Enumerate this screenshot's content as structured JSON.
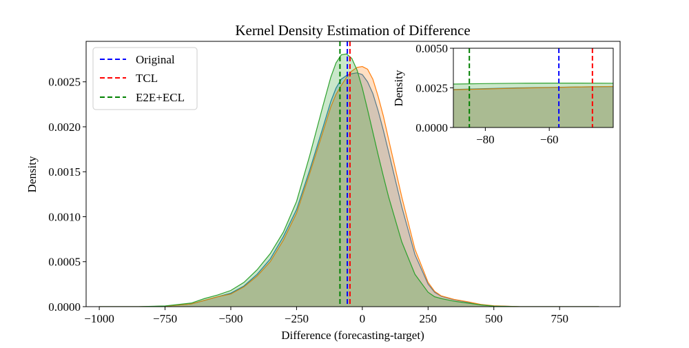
{
  "chart_data": [
    {
      "type": "area",
      "title": "Kernel Density Estimation of Difference",
      "xlabel": "Difference (forecasting-target)",
      "ylabel": "Density",
      "xlim": [
        -1050,
        980
      ],
      "ylim": [
        0,
        0.00295
      ],
      "xticks": [
        -1000,
        -750,
        -500,
        -250,
        0,
        250,
        500,
        750
      ],
      "xtick_labels": [
        "−1000",
        "−750",
        "−500",
        "−250",
        "0",
        "250",
        "500",
        "750"
      ],
      "yticks": [
        0,
        0.0005,
        0.001,
        0.0015,
        0.002,
        0.0025
      ],
      "ytick_labels": [
        "0.0000",
        "0.0005",
        "0.0010",
        "0.0015",
        "0.0020",
        "0.0025"
      ],
      "grid": false,
      "legend_position": "top-left",
      "series": [
        {
          "name": "Original",
          "color": "#1f77b4",
          "fill": "#1f77b4",
          "x": [
            -1000,
            -850,
            -750,
            -650,
            -600,
            -550,
            -500,
            -450,
            -400,
            -350,
            -300,
            -250,
            -200,
            -150,
            -120,
            -100,
            -80,
            -60,
            -40,
            -20,
            0,
            20,
            40,
            60,
            80,
            100,
            150,
            200,
            250,
            275,
            300,
            350,
            400,
            450,
            500,
            600,
            700,
            900
          ],
          "y": [
            0.0,
            0.0,
            5e-06,
            3e-05,
            7e-05,
            0.00011,
            0.00015,
            0.00023,
            0.00036,
            0.00053,
            0.00078,
            0.00108,
            0.00152,
            0.00199,
            0.00228,
            0.00243,
            0.00253,
            0.00257,
            0.00259,
            0.0026,
            0.00258,
            0.0025,
            0.00237,
            0.00218,
            0.00196,
            0.00172,
            0.00111,
            0.00058,
            0.00025,
            0.00016,
            0.000115,
            7.5e-05,
            5e-05,
            2e-05,
            8e-06,
            0.0,
            0.0,
            0.0
          ]
        },
        {
          "name": "TCL",
          "color": "#ff7f0e",
          "fill": "#ff7f0e",
          "x": [
            -1000,
            -850,
            -750,
            -650,
            -600,
            -550,
            -500,
            -450,
            -400,
            -350,
            -300,
            -250,
            -200,
            -150,
            -120,
            -100,
            -80,
            -60,
            -40,
            -20,
            0,
            20,
            40,
            60,
            80,
            100,
            150,
            200,
            250,
            275,
            300,
            350,
            400,
            450,
            500,
            600,
            700,
            900
          ],
          "y": [
            0.0,
            0.0,
            5e-06,
            3e-05,
            7e-05,
            0.00011,
            0.00014,
            0.00022,
            0.00034,
            0.0005,
            0.00074,
            0.00104,
            0.00148,
            0.00194,
            0.00222,
            0.00236,
            0.00246,
            0.00255,
            0.00262,
            0.00266,
            0.00267,
            0.00264,
            0.00253,
            0.00234,
            0.00212,
            0.00186,
            0.00122,
            0.00064,
            0.00027,
            0.00017,
            0.00012,
            8e-05,
            5.5e-05,
            2.5e-05,
            1e-05,
            0.0,
            0.0,
            0.0
          ]
        },
        {
          "name": "E2E+ECL",
          "color": "#2ca02c",
          "fill": "#2ca02c",
          "x": [
            -1000,
            -850,
            -750,
            -650,
            -600,
            -550,
            -500,
            -450,
            -400,
            -350,
            -300,
            -250,
            -200,
            -150,
            -120,
            -100,
            -80,
            -60,
            -40,
            -20,
            0,
            20,
            40,
            60,
            80,
            100,
            150,
            200,
            250,
            275,
            300,
            350,
            400,
            450,
            500,
            600,
            700,
            900
          ],
          "y": [
            0.0,
            0.0,
            8e-06,
            4e-05,
            9e-05,
            0.00013,
            0.00018,
            0.00027,
            0.00041,
            0.00059,
            0.00083,
            0.00117,
            0.00168,
            0.00223,
            0.00255,
            0.00271,
            0.0028,
            0.00281,
            0.00276,
            0.00263,
            0.00243,
            0.00219,
            0.00194,
            0.00169,
            0.00145,
            0.00122,
            0.00072,
            0.00036,
            0.00016,
            0.00011,
            9e-05,
            6e-05,
            4e-05,
            2e-05,
            6e-06,
            0.0,
            0.0,
            0.0
          ]
        }
      ],
      "vlines": [
        {
          "series": "Original",
          "x": -57,
          "color": "#0000ff"
        },
        {
          "series": "TCL",
          "x": -47,
          "color": "#ff0000"
        },
        {
          "series": "E2E+ECL",
          "x": -85,
          "color": "#008000"
        }
      ]
    },
    {
      "type": "area",
      "title": "",
      "xlabel": "",
      "ylabel": "Density",
      "xlim": [
        -90,
        -40
      ],
      "ylim": [
        0,
        0.005
      ],
      "xticks": [
        -80,
        -60
      ],
      "xtick_labels": [
        "−80",
        "−60"
      ],
      "yticks": [
        0,
        0.0025,
        0.005
      ],
      "ytick_labels": [
        "0.0000",
        "0.0025",
        "0.0050"
      ],
      "series": [
        {
          "name": "Original",
          "color": "#1f77b4",
          "fill": "#1f77b4",
          "x": [
            -90,
            -80,
            -70,
            -60,
            -50,
            -40
          ],
          "y": [
            0.0024,
            0.00245,
            0.0025,
            0.00253,
            0.00256,
            0.00258
          ]
        },
        {
          "name": "TCL",
          "color": "#ff7f0e",
          "fill": "#ff7f0e",
          "x": [
            -90,
            -80,
            -70,
            -60,
            -50,
            -40
          ],
          "y": [
            0.00238,
            0.00243,
            0.00248,
            0.00252,
            0.00256,
            0.00259
          ]
        },
        {
          "name": "E2E+ECL",
          "color": "#2ca02c",
          "fill": "#2ca02c",
          "x": [
            -90,
            -80,
            -70,
            -60,
            -50,
            -40
          ],
          "y": [
            0.00274,
            0.00277,
            0.00279,
            0.0028,
            0.0028,
            0.00279
          ]
        }
      ],
      "vlines": [
        {
          "series": "Original",
          "x": -57,
          "color": "#0000ff"
        },
        {
          "series": "TCL",
          "x": -46.5,
          "color": "#ff0000"
        },
        {
          "series": "E2E+ECL",
          "x": -85,
          "color": "#008000"
        }
      ]
    }
  ]
}
